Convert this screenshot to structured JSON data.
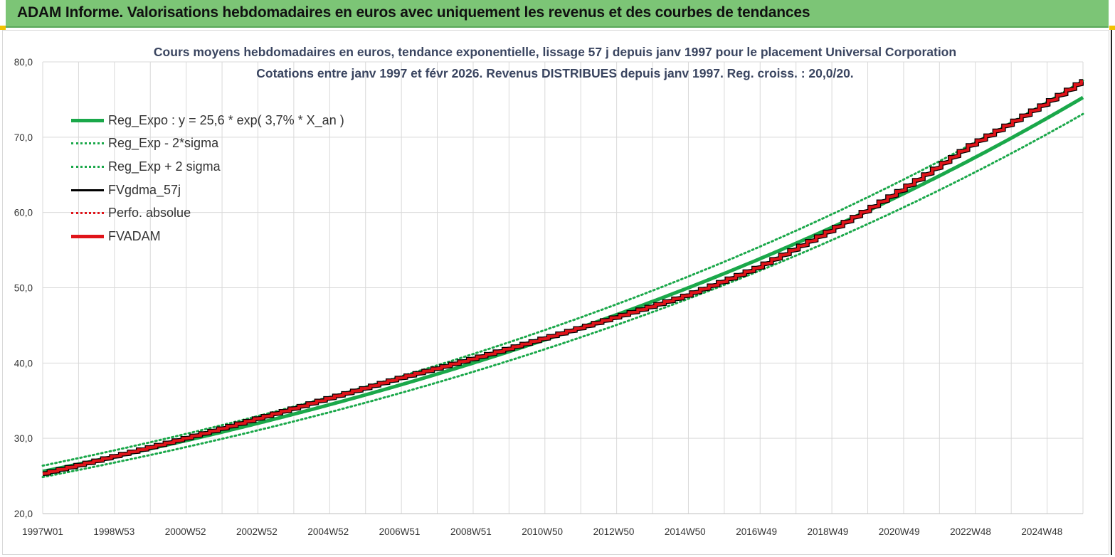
{
  "banner": {
    "title": "ADAM Informe. Valorisations hebdomadaires en euros avec uniquement les revenus et des courbes de tendances"
  },
  "colors": {
    "banner": "#7cc576",
    "trend": "#1aa84a",
    "fvadam": "#e0141a",
    "fvgdma": "#000000",
    "grid": "#d9d9d9"
  },
  "chart_data": {
    "type": "line",
    "title": "Cours moyens hebdomadaires en euros, tendance exponentielle, lissage 57 j depuis janv 1997 pour le placement Universal Corporation",
    "subtitle": "Cotations entre janv 1997 et févr 2026. Revenus DISTRIBUES depuis janv 1997. Reg. croiss. : 20,0/20.",
    "xlabel": "",
    "ylabel": "",
    "ylim": [
      20,
      80
    ],
    "yticks": [
      "20,0",
      "30,0",
      "40,0",
      "50,0",
      "60,0",
      "70,0",
      "80,0"
    ],
    "xticks": [
      "1997W01",
      "1998W53",
      "2000W52",
      "2002W52",
      "2004W52",
      "2006W51",
      "2008W51",
      "2010W50",
      "2012W50",
      "2014W50",
      "2016W49",
      "2018W49",
      "2020W49",
      "2022W48",
      "2024W48"
    ],
    "xlim_years": [
      1997.0,
      2026.15
    ],
    "grid": true,
    "legend_position": "top-left",
    "trend_model": {
      "a": 25.6,
      "rate": 0.037,
      "sigma_factor": 1.03
    },
    "series": [
      {
        "name": "Reg_Expo : y = 25,6 * exp( 3,7% *  X_an )",
        "style": "solid-thick",
        "color": "#1aa84a",
        "x": [
          1997,
          2001,
          2005,
          2009,
          2013,
          2017,
          2021,
          2026.15
        ],
        "y": [
          25.6,
          29.6,
          34.0,
          39.2,
          45.3,
          52.6,
          61.1,
          75.8
        ]
      },
      {
        "name": "Reg_Exp - 2*sigma",
        "style": "dotted",
        "color": "#1aa84a",
        "x": [
          1997,
          2001,
          2005,
          2009,
          2013,
          2017,
          2021,
          2026.15
        ],
        "y": [
          24.9,
          28.7,
          33.0,
          38.0,
          43.9,
          51.0,
          59.3,
          73.6
        ]
      },
      {
        "name": "Reg_Exp + 2 sigma",
        "style": "dotted",
        "color": "#1aa84a",
        "x": [
          1997,
          2001,
          2005,
          2009,
          2013,
          2017,
          2021,
          2026.15
        ],
        "y": [
          26.4,
          30.5,
          35.0,
          40.4,
          46.7,
          54.2,
          63.0,
          78.1
        ]
      },
      {
        "name": "FVgdma_57j",
        "style": "solid",
        "color": "#000000",
        "x": [
          1997,
          2001,
          2005,
          2009,
          2013,
          2017,
          2021,
          2026.15
        ],
        "y": [
          25.3,
          30.0,
          35.3,
          40.5,
          46.0,
          51.5,
          61.2,
          77.4
        ]
      },
      {
        "name": "Perfo. absolue",
        "style": "dotted",
        "color": "#e0141a",
        "x": [
          1997,
          2001,
          2005,
          2009,
          2013,
          2017,
          2021,
          2026.15
        ],
        "y": [
          25.3,
          30.0,
          35.3,
          40.5,
          46.0,
          51.5,
          61.2,
          77.4
        ]
      },
      {
        "name": "FVADAM",
        "style": "solid-thick",
        "color": "#e0141a",
        "x": [
          1997,
          1999,
          2001,
          2003,
          2005,
          2007,
          2009,
          2011,
          2013,
          2015,
          2017,
          2019,
          2021,
          2023,
          2026.15
        ],
        "y": [
          25.3,
          27.6,
          30.0,
          32.6,
          35.3,
          38.0,
          40.5,
          43.2,
          46.0,
          48.9,
          52.6,
          57.4,
          62.8,
          68.9,
          77.4
        ]
      }
    ]
  }
}
